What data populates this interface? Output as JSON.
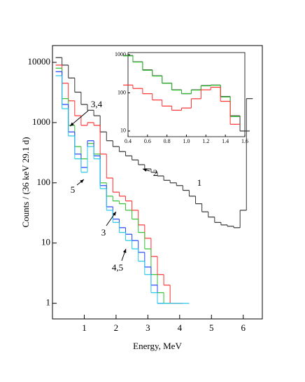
{
  "chart_data": [
    {
      "type": "histogram-line",
      "x_label": "Energy, MeV",
      "y_label": "Counts / (36 keV 29.1 d)",
      "log_y": true,
      "xlim": [
        0,
        6.6
      ],
      "ylim": [
        0.55,
        19000
      ],
      "xticks": [
        1,
        2,
        3,
        4,
        5,
        6
      ],
      "yticks": [
        1,
        10,
        100,
        1000,
        10000
      ],
      "x": [
        0.2,
        0.4,
        0.6,
        0.8,
        1.0,
        1.2,
        1.4,
        1.6,
        1.8,
        2.0,
        2.2,
        2.4,
        2.6,
        2.8,
        3.0,
        3.2,
        3.4,
        3.6,
        3.8,
        4.0,
        4.2,
        4.4,
        4.6,
        4.8,
        5.0,
        5.2,
        5.4,
        5.6,
        5.8,
        6.0,
        6.2
      ],
      "series": [
        {
          "color": "#333333",
          "values": [
            12000,
            9000,
            5500,
            3200,
            2000,
            1600,
            1300,
            700,
            500,
            400,
            330,
            280,
            240,
            200,
            170,
            150,
            130,
            110,
            100,
            90,
            75,
            60,
            45,
            33,
            27,
            22,
            20,
            19,
            18,
            35,
            2500
          ]
        },
        {
          "color": "#ff3030",
          "values": [
            9000,
            4500,
            2300,
            1300,
            900,
            1000,
            900,
            300,
            120,
            70,
            60,
            50,
            35,
            20,
            12,
            6,
            3,
            2,
            1,
            1,
            null,
            null,
            null,
            null,
            null,
            null,
            null,
            null,
            null,
            null,
            null
          ]
        },
        {
          "color": "#30c030",
          "values": [
            8000,
            2500,
            900,
            400,
            250,
            450,
            300,
            100,
            60,
            50,
            45,
            35,
            25,
            15,
            8,
            3,
            1.5,
            1,
            null,
            null,
            null,
            null,
            null,
            null,
            null,
            null,
            null,
            null,
            null,
            null,
            null
          ]
        },
        {
          "color": "#2040ff",
          "values": [
            7000,
            2000,
            700,
            300,
            180,
            500,
            280,
            90,
            40,
            25,
            18,
            14,
            11,
            7,
            4,
            2,
            1,
            null,
            null,
            null,
            null,
            null,
            null,
            null,
            null,
            null,
            null,
            null,
            null,
            null,
            null
          ]
        },
        {
          "color": "#20c8e8",
          "values": [
            6000,
            1700,
            600,
            250,
            150,
            400,
            250,
            80,
            35,
            22,
            15,
            11,
            8,
            5,
            3,
            1.5,
            1,
            1,
            1,
            1,
            1,
            null,
            null,
            null,
            null,
            null,
            null,
            null,
            null,
            null,
            null
          ]
        }
      ],
      "annotations": [
        "1",
        "2",
        "3",
        "3,4",
        "4,5",
        "5"
      ]
    },
    {
      "type": "histogram-line",
      "log_y": true,
      "xlim": [
        0.4,
        1.6
      ],
      "ylim": [
        7.1,
        1135
      ],
      "xticks": [
        0.4,
        0.6,
        0.8,
        {
          "value": 1,
          "label": "1.0"
        },
        1.2,
        1.4,
        1.6
      ],
      "yticks": [
        10,
        100,
        1000
      ],
      "x": [
        0.4,
        0.5,
        0.6,
        0.7,
        0.8,
        0.9,
        1.0,
        1.1,
        1.2,
        1.3,
        1.4,
        1.5,
        1.6
      ],
      "series": [
        {
          "color": "#333333",
          "values": [
            950,
            650,
            400,
            280,
            180,
            120,
            95,
            120,
            155,
            160,
            80,
            25,
            10
          ]
        },
        {
          "color": "#30c030",
          "values": [
            930,
            640,
            390,
            275,
            178,
            118,
            96,
            118,
            152,
            158,
            78,
            24,
            null
          ]
        },
        {
          "color": "#ff3030",
          "values": [
            160,
            130,
            95,
            65,
            45,
            35,
            40,
            70,
            120,
            140,
            60,
            15,
            null
          ]
        }
      ]
    }
  ]
}
